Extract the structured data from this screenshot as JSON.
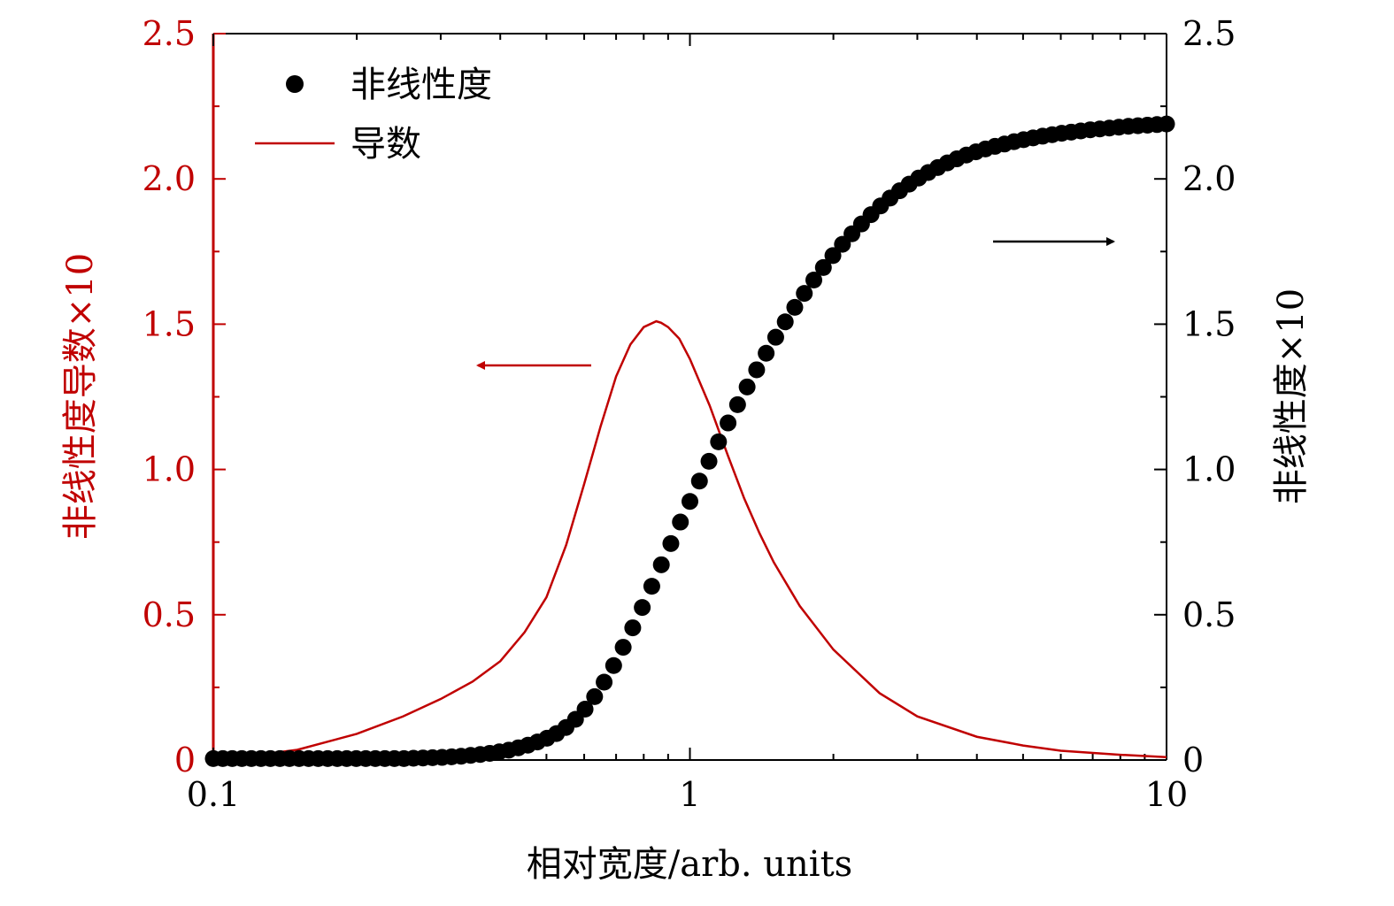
{
  "chart_data": {
    "type": "scatter",
    "x_scale": "log",
    "xlim": [
      0.1,
      10
    ],
    "y_left_lim": [
      0,
      2.5
    ],
    "y_right_lim": [
      0,
      2.5
    ],
    "xlabel": "相对宽度/arb. units",
    "ylabel_left": "非线性度导数×10",
    "ylabel_right": "非线性度×10",
    "x_ticks": [
      "0.1",
      "1",
      "10"
    ],
    "y_ticks": [
      "0",
      "0.5",
      "1.0",
      "1.5",
      "2.0",
      "2.5"
    ],
    "legend": {
      "position": "top-left",
      "entries": [
        "非线性度",
        "导数"
      ]
    },
    "colors": {
      "derivative": "#c00000",
      "nonlinearity": "#000000",
      "left_axis": "#c00000",
      "right_axis": "#000000"
    },
    "series": [
      {
        "name": "非线性度",
        "style": "markers",
        "axis": "right",
        "color": "#000000",
        "x": [
          0.1,
          0.1047,
          0.1096,
          0.1148,
          0.1202,
          0.1259,
          0.1318,
          0.138,
          0.1445,
          0.1514,
          0.1585,
          0.166,
          0.1738,
          0.182,
          0.1905,
          0.1995,
          0.2089,
          0.2188,
          0.2291,
          0.2399,
          0.2512,
          0.263,
          0.2754,
          0.2884,
          0.302,
          0.3162,
          0.3311,
          0.3467,
          0.3631,
          0.3802,
          0.3981,
          0.4169,
          0.4365,
          0.4571,
          0.4786,
          0.5012,
          0.5248,
          0.5495,
          0.5754,
          0.6026,
          0.631,
          0.6607,
          0.6918,
          0.7244,
          0.7586,
          0.7943,
          0.8318,
          0.871,
          0.912,
          0.955,
          1.0,
          1.0471,
          1.0965,
          1.1482,
          1.2023,
          1.2589,
          1.3183,
          1.3804,
          1.4454,
          1.5136,
          1.5849,
          1.6596,
          1.7378,
          1.8197,
          1.9055,
          1.9953,
          2.0893,
          2.1878,
          2.2909,
          2.3988,
          2.5119,
          2.6303,
          2.7542,
          2.884,
          3.02,
          3.1623,
          3.3113,
          3.4674,
          3.6308,
          3.8019,
          3.9811,
          4.1687,
          4.3652,
          4.5709,
          4.7863,
          5.0119,
          5.2481,
          5.4954,
          5.7544,
          6.0256,
          6.3096,
          6.6069,
          6.9183,
          7.2444,
          7.5858,
          7.9433,
          8.3176,
          8.7096,
          9.1201,
          9.5499,
          10.0
        ],
        "y": [
          0.005,
          0.005,
          0.005,
          0.005,
          0.005,
          0.005,
          0.005,
          0.005,
          0.005,
          0.005,
          0.005,
          0.005,
          0.005,
          0.005,
          0.005,
          0.005,
          0.005,
          0.005,
          0.005,
          0.005,
          0.005,
          0.006,
          0.007,
          0.008,
          0.009,
          0.011,
          0.013,
          0.016,
          0.019,
          0.023,
          0.028,
          0.034,
          0.042,
          0.051,
          0.062,
          0.075,
          0.091,
          0.112,
          0.14,
          0.175,
          0.218,
          0.268,
          0.325,
          0.388,
          0.455,
          0.525,
          0.598,
          0.672,
          0.745,
          0.819,
          0.89,
          0.96,
          1.028,
          1.095,
          1.16,
          1.223,
          1.284,
          1.343,
          1.4,
          1.455,
          1.508,
          1.558,
          1.606,
          1.652,
          1.695,
          1.736,
          1.775,
          1.811,
          1.845,
          1.877,
          1.907,
          1.934,
          1.959,
          1.982,
          2.003,
          2.022,
          2.039,
          2.055,
          2.069,
          2.082,
          2.093,
          2.103,
          2.112,
          2.12,
          2.128,
          2.135,
          2.141,
          2.147,
          2.152,
          2.157,
          2.161,
          2.165,
          2.169,
          2.172,
          2.175,
          2.178,
          2.181,
          2.183,
          2.185,
          2.187,
          2.189
        ]
      },
      {
        "name": "导数",
        "style": "line",
        "axis": "left",
        "color": "#c00000",
        "x": [
          0.1,
          0.12,
          0.15,
          0.2,
          0.25,
          0.3,
          0.35,
          0.4,
          0.45,
          0.5,
          0.55,
          0.6,
          0.65,
          0.7,
          0.75,
          0.8,
          0.85,
          0.87,
          0.9,
          0.95,
          1.0,
          1.1,
          1.2,
          1.3,
          1.4,
          1.5,
          1.7,
          2.0,
          2.5,
          3.0,
          4.0,
          5.0,
          6.0,
          8.0,
          10.0
        ],
        "y": [
          0.005,
          0.015,
          0.035,
          0.09,
          0.15,
          0.21,
          0.27,
          0.34,
          0.44,
          0.56,
          0.74,
          0.95,
          1.15,
          1.32,
          1.43,
          1.49,
          1.51,
          1.505,
          1.49,
          1.45,
          1.38,
          1.22,
          1.05,
          0.9,
          0.78,
          0.68,
          0.53,
          0.38,
          0.23,
          0.15,
          0.08,
          0.05,
          0.032,
          0.018,
          0.01
        ]
      }
    ]
  }
}
